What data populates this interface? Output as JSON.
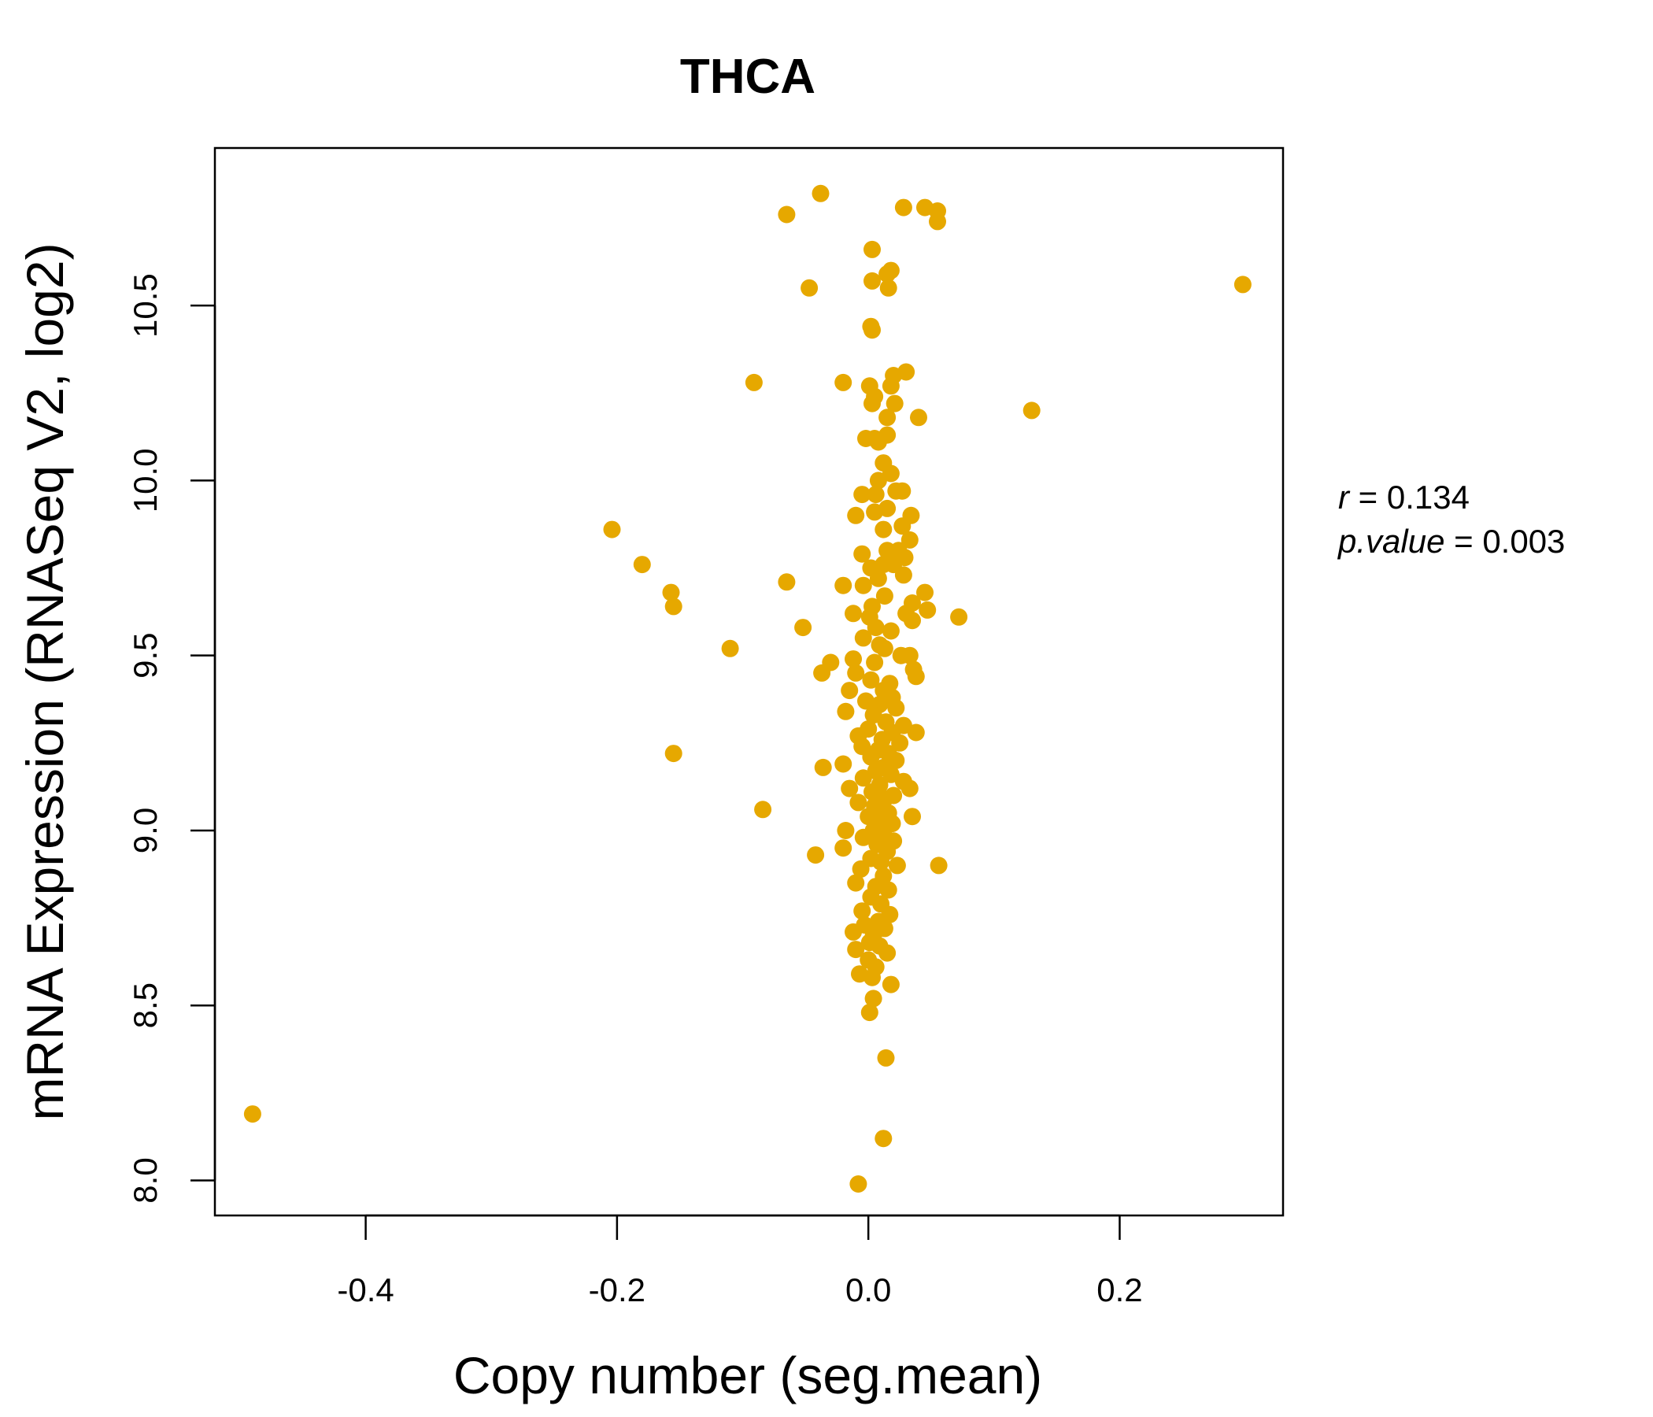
{
  "chart_data": {
    "type": "scatter",
    "title": "THCA",
    "title_color": "#E6A800",
    "point_color": "#E6A800",
    "xlabel": "Copy number (seg.mean)",
    "ylabel": "mRNA Expression (RNASeq V2, log2)",
    "xlim": [
      -0.52,
      0.33
    ],
    "ylim": [
      7.9,
      10.95
    ],
    "xticks": [
      -0.4,
      -0.2,
      0.0,
      0.2
    ],
    "xtick_labels": [
      "-0.4",
      "-0.2",
      "0.0",
      "0.2"
    ],
    "yticks": [
      8.0,
      8.5,
      9.0,
      9.5,
      10.0,
      10.5
    ],
    "ytick_labels": [
      "8.0",
      "8.5",
      "9.0",
      "9.5",
      "10.0",
      "10.5"
    ],
    "stats": {
      "r_label": "r",
      "r_value": "0.134",
      "p_label": "p.value",
      "p_value": "0.003"
    },
    "points": [
      [
        -0.49,
        8.19
      ],
      [
        0.298,
        10.56
      ],
      [
        -0.038,
        10.82
      ],
      [
        -0.065,
        10.76
      ],
      [
        0.028,
        10.78
      ],
      [
        0.045,
        10.78
      ],
      [
        0.055,
        10.77
      ],
      [
        0.055,
        10.74
      ],
      [
        -0.047,
        10.55
      ],
      [
        0.003,
        10.66
      ],
      [
        0.015,
        10.59
      ],
      [
        0.018,
        10.6
      ],
      [
        0.003,
        10.57
      ],
      [
        0.016,
        10.55
      ],
      [
        0.002,
        10.44
      ],
      [
        0.003,
        10.43
      ],
      [
        -0.091,
        10.28
      ],
      [
        -0.02,
        10.28
      ],
      [
        0.03,
        10.31
      ],
      [
        0.02,
        10.3
      ],
      [
        0.001,
        10.27
      ],
      [
        0.018,
        10.27
      ],
      [
        0.005,
        10.24
      ],
      [
        0.021,
        10.22
      ],
      [
        0.003,
        10.22
      ],
      [
        0.015,
        10.18
      ],
      [
        0.04,
        10.18
      ],
      [
        0.13,
        10.2
      ],
      [
        0.015,
        10.13
      ],
      [
        0.005,
        10.12
      ],
      [
        -0.002,
        10.12
      ],
      [
        0.008,
        10.11
      ],
      [
        0.012,
        10.05
      ],
      [
        0.018,
        10.02
      ],
      [
        0.008,
        10.0
      ],
      [
        0.022,
        9.97
      ],
      [
        -0.005,
        9.96
      ],
      [
        0.006,
        9.96
      ],
      [
        0.027,
        9.97
      ],
      [
        0.015,
        9.92
      ],
      [
        0.005,
        9.91
      ],
      [
        0.034,
        9.9
      ],
      [
        -0.01,
        9.9
      ],
      [
        0.012,
        9.86
      ],
      [
        0.027,
        9.87
      ],
      [
        -0.204,
        9.86
      ],
      [
        -0.18,
        9.76
      ],
      [
        0.033,
        9.83
      ],
      [
        -0.005,
        9.79
      ],
      [
        0.015,
        9.8
      ],
      [
        0.024,
        9.8
      ],
      [
        0.029,
        9.78
      ],
      [
        0.012,
        9.76
      ],
      [
        0.02,
        9.76
      ],
      [
        0.002,
        9.75
      ],
      [
        0.008,
        9.72
      ],
      [
        0.028,
        9.73
      ],
      [
        -0.065,
        9.71
      ],
      [
        -0.02,
        9.7
      ],
      [
        -0.004,
        9.7
      ],
      [
        0.013,
        9.67
      ],
      [
        0.045,
        9.68
      ],
      [
        -0.157,
        9.68
      ],
      [
        0.035,
        9.65
      ],
      [
        0.003,
        9.64
      ],
      [
        0.03,
        9.62
      ],
      [
        0.047,
        9.63
      ],
      [
        0.072,
        9.61
      ],
      [
        0.035,
        9.6
      ],
      [
        -0.155,
        9.64
      ],
      [
        -0.012,
        9.62
      ],
      [
        0.001,
        9.61
      ],
      [
        -0.052,
        9.58
      ],
      [
        0.006,
        9.58
      ],
      [
        0.018,
        9.57
      ],
      [
        -0.004,
        9.55
      ],
      [
        0.009,
        9.53
      ],
      [
        0.013,
        9.52
      ],
      [
        -0.11,
        9.52
      ],
      [
        0.026,
        9.5
      ],
      [
        0.033,
        9.5
      ],
      [
        -0.012,
        9.49
      ],
      [
        0.005,
        9.48
      ],
      [
        -0.03,
        9.48
      ],
      [
        0.036,
        9.46
      ],
      [
        0.038,
        9.44
      ],
      [
        -0.037,
        9.45
      ],
      [
        -0.01,
        9.45
      ],
      [
        0.002,
        9.43
      ],
      [
        0.017,
        9.42
      ],
      [
        0.012,
        9.4
      ],
      [
        -0.015,
        9.4
      ],
      [
        0.019,
        9.38
      ],
      [
        -0.002,
        9.37
      ],
      [
        0.009,
        9.36
      ],
      [
        0.022,
        9.35
      ],
      [
        -0.018,
        9.34
      ],
      [
        0.004,
        9.33
      ],
      [
        0.014,
        9.31
      ],
      [
        0.028,
        9.3
      ],
      [
        0.0,
        9.29
      ],
      [
        0.019,
        9.28
      ],
      [
        -0.008,
        9.27
      ],
      [
        0.038,
        9.28
      ],
      [
        0.011,
        9.26
      ],
      [
        0.025,
        9.25
      ],
      [
        -0.005,
        9.24
      ],
      [
        0.008,
        9.23
      ],
      [
        -0.155,
        9.22
      ],
      [
        0.016,
        9.22
      ],
      [
        0.002,
        9.21
      ],
      [
        0.022,
        9.2
      ],
      [
        -0.036,
        9.18
      ],
      [
        -0.02,
        9.19
      ],
      [
        0.012,
        9.18
      ],
      [
        0.006,
        9.17
      ],
      [
        0.018,
        9.16
      ],
      [
        -0.004,
        9.15
      ],
      [
        0.028,
        9.14
      ],
      [
        0.009,
        9.13
      ],
      [
        0.033,
        9.12
      ],
      [
        -0.015,
        9.12
      ],
      [
        0.003,
        9.11
      ],
      [
        0.02,
        9.1
      ],
      [
        0.013,
        9.09
      ],
      [
        -0.008,
        9.08
      ],
      [
        0.005,
        9.07
      ],
      [
        -0.084,
        9.06
      ],
      [
        0.035,
        9.04
      ],
      [
        0.016,
        9.05
      ],
      [
        0.0,
        9.04
      ],
      [
        0.009,
        9.03
      ],
      [
        0.019,
        9.02
      ],
      [
        -0.018,
        9.0
      ],
      [
        0.004,
        9.0
      ],
      [
        0.012,
        8.99
      ],
      [
        -0.004,
        8.98
      ],
      [
        0.02,
        8.97
      ],
      [
        0.007,
        8.96
      ],
      [
        -0.02,
        8.95
      ],
      [
        0.015,
        8.94
      ],
      [
        -0.042,
        8.93
      ],
      [
        0.002,
        8.92
      ],
      [
        0.01,
        8.91
      ],
      [
        0.023,
        8.9
      ],
      [
        0.056,
        8.9
      ],
      [
        -0.006,
        8.89
      ],
      [
        0.012,
        8.87
      ],
      [
        -0.01,
        8.85
      ],
      [
        0.006,
        8.84
      ],
      [
        0.016,
        8.83
      ],
      [
        0.002,
        8.81
      ],
      [
        0.01,
        8.79
      ],
      [
        -0.005,
        8.77
      ],
      [
        0.017,
        8.76
      ],
      [
        0.008,
        8.74
      ],
      [
        -0.003,
        8.73
      ],
      [
        0.013,
        8.72
      ],
      [
        -0.012,
        8.71
      ],
      [
        0.004,
        8.7
      ],
      [
        0.001,
        8.68
      ],
      [
        0.009,
        8.67
      ],
      [
        -0.01,
        8.66
      ],
      [
        0.015,
        8.65
      ],
      [
        0.0,
        8.63
      ],
      [
        0.006,
        8.61
      ],
      [
        -0.007,
        8.59
      ],
      [
        0.003,
        8.58
      ],
      [
        0.018,
        8.56
      ],
      [
        0.004,
        8.52
      ],
      [
        0.001,
        8.48
      ],
      [
        0.014,
        8.35
      ],
      [
        0.012,
        8.12
      ],
      [
        -0.008,
        7.99
      ]
    ]
  }
}
